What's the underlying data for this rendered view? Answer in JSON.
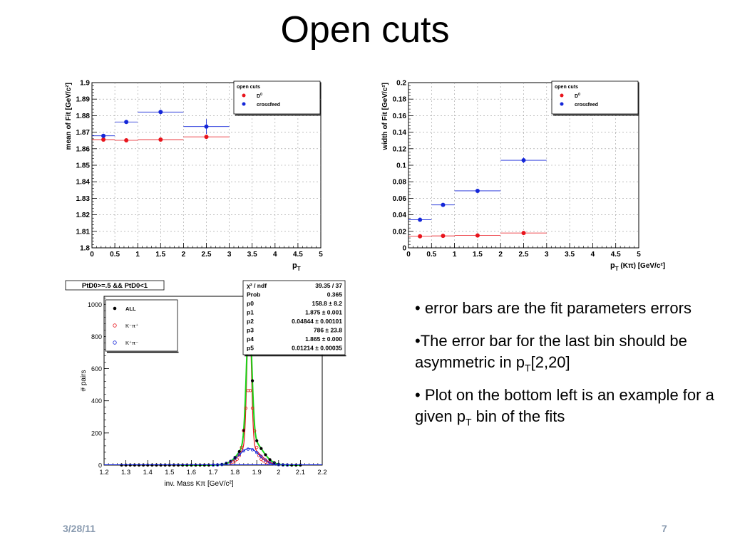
{
  "slide": {
    "title": "Open cuts",
    "footer_date": "3/28/11",
    "page_number": "7",
    "bullets": [
      {
        "pre": "• error bars are the fit parameters errors",
        "sub": "",
        "post": ""
      },
      {
        "pre": "•The error bar for the last bin should be asymmetric in p",
        "sub": "T",
        "post": "[2,20]"
      },
      {
        "pre": "• Plot on the bottom left is an example for a given p",
        "sub": "T",
        "post": " bin of the fits"
      }
    ]
  },
  "chart_data": [
    {
      "type": "scatter",
      "ylabel": "mean of Fit [GeV/c²]",
      "xlabel": "p",
      "xlabel_sub": "T",
      "xlim": [
        0,
        5
      ],
      "ylim": [
        1.8,
        1.9
      ],
      "xticks": [
        "0",
        "0.5",
        "1",
        "1.5",
        "2",
        "2.5",
        "3",
        "3.5",
        "4",
        "4.5",
        "5"
      ],
      "yticks": [
        "1.8",
        "1.81",
        "1.82",
        "1.83",
        "1.84",
        "1.85",
        "1.86",
        "1.87",
        "1.88",
        "1.89",
        "1.9"
      ],
      "grid": true,
      "legend": {
        "title": "open cuts",
        "position": "top-right",
        "entries": [
          {
            "label": "D",
            "sup": "0",
            "color": "#e8141c"
          },
          {
            "label": "crossfeed",
            "sup": "",
            "color": "#1426d8"
          }
        ]
      },
      "series": [
        {
          "name": "D0",
          "color": "#e8141c",
          "points": [
            {
              "x": 0.25,
              "y": 1.8655,
              "xerr": 0.25,
              "yerr": 0.0008
            },
            {
              "x": 0.75,
              "y": 1.8651,
              "xerr": 0.25,
              "yerr": 0.0008
            },
            {
              "x": 1.5,
              "y": 1.8655,
              "xerr": 0.5,
              "yerr": 0.0008
            },
            {
              "x": 2.5,
              "y": 1.8672,
              "xerr": 0.5,
              "yerr": 0.0012
            }
          ]
        },
        {
          "name": "crossfeed",
          "color": "#1426d8",
          "points": [
            {
              "x": 0.25,
              "y": 1.8678,
              "xerr": 0.25,
              "yerr": 0.0012
            },
            {
              "x": 0.75,
              "y": 1.8762,
              "xerr": 0.25,
              "yerr": 0.0012
            },
            {
              "x": 1.5,
              "y": 1.8822,
              "xerr": 0.5,
              "yerr": 0.0015
            },
            {
              "x": 2.5,
              "y": 1.8734,
              "xerr": 0.5,
              "yerr": 0.0045
            }
          ]
        }
      ]
    },
    {
      "type": "scatter",
      "ylabel": "width of Fit [GeV/c²]",
      "xlabel": "p",
      "xlabel_sub": "T",
      "xlabel_post": " (Kπ) [GeV/c²]",
      "xlim": [
        0,
        5
      ],
      "ylim": [
        0,
        0.2
      ],
      "xticks": [
        "0",
        "0.5",
        "1",
        "1.5",
        "2",
        "2.5",
        "3",
        "3.5",
        "4",
        "4.5",
        "5"
      ],
      "yticks": [
        "0",
        "0.02",
        "0.04",
        "0.06",
        "0.08",
        "0.1",
        "0.12",
        "0.14",
        "0.16",
        "0.18",
        "0.2"
      ],
      "grid": true,
      "legend": {
        "title": "open cuts",
        "position": "top-right",
        "entries": [
          {
            "label": "D",
            "sup": "0",
            "color": "#e8141c"
          },
          {
            "label": "crossfeed",
            "sup": "",
            "color": "#1426d8"
          }
        ]
      },
      "series": [
        {
          "name": "D0",
          "color": "#e8141c",
          "points": [
            {
              "x": 0.25,
              "y": 0.014,
              "xerr": 0.25,
              "yerr": 0.0006
            },
            {
              "x": 0.75,
              "y": 0.0145,
              "xerr": 0.25,
              "yerr": 0.0006
            },
            {
              "x": 1.5,
              "y": 0.015,
              "xerr": 0.5,
              "yerr": 0.0006
            },
            {
              "x": 2.5,
              "y": 0.018,
              "xerr": 0.5,
              "yerr": 0.001
            }
          ]
        },
        {
          "name": "crossfeed",
          "color": "#1426d8",
          "points": [
            {
              "x": 0.25,
              "y": 0.034,
              "xerr": 0.25,
              "yerr": 0.0015
            },
            {
              "x": 0.75,
              "y": 0.052,
              "xerr": 0.25,
              "yerr": 0.0015
            },
            {
              "x": 1.5,
              "y": 0.069,
              "xerr": 0.5,
              "yerr": 0.0015
            },
            {
              "x": 2.5,
              "y": 0.106,
              "xerr": 0.5,
              "yerr": 0.0035
            }
          ]
        }
      ]
    },
    {
      "type": "line",
      "title": "PtD0>=.5 && PtD0<1",
      "xlabel": "inv. Mass Kπ [GeV/c²]",
      "ylabel": "# pairs",
      "xlim": [
        1.2,
        2.2
      ],
      "ylim": [
        0,
        1050
      ],
      "xticks": [
        "1.2",
        "1.3",
        "1.4",
        "1.5",
        "1.6",
        "1.7",
        "1.8",
        "1.9",
        "2",
        "2.1",
        "2.2"
      ],
      "yticks": [
        "0",
        "200",
        "400",
        "600",
        "800",
        "1000"
      ],
      "legend": {
        "position": "top-left",
        "entries": [
          {
            "label": "ALL",
            "sup": "",
            "color": "#000000"
          },
          {
            "label": "K⁻π⁺",
            "sup": "",
            "color": "#e8141c"
          },
          {
            "label": "K⁺π⁻",
            "sup": "",
            "color": "#1426d8"
          }
        ]
      },
      "stats": [
        [
          "χ² / ndf",
          "39.35 / 37"
        ],
        [
          "Prob",
          "0.365"
        ],
        [
          "p0",
          "158.8 ± 8.2"
        ],
        [
          "p1",
          "1.875 ± 0.001"
        ],
        [
          "p2",
          "0.04844 ± 0.00101"
        ],
        [
          "p3",
          "786 ± 23.8"
        ],
        [
          "p4",
          "1.865 ± 0.000"
        ],
        [
          "p5",
          "0.01214 ± 0.00035"
        ]
      ],
      "fit": {
        "p0": 158.8,
        "p1": 1.875,
        "p2": 0.04844,
        "p3": 786,
        "p4": 1.865,
        "p5": 0.01214
      }
    }
  ]
}
